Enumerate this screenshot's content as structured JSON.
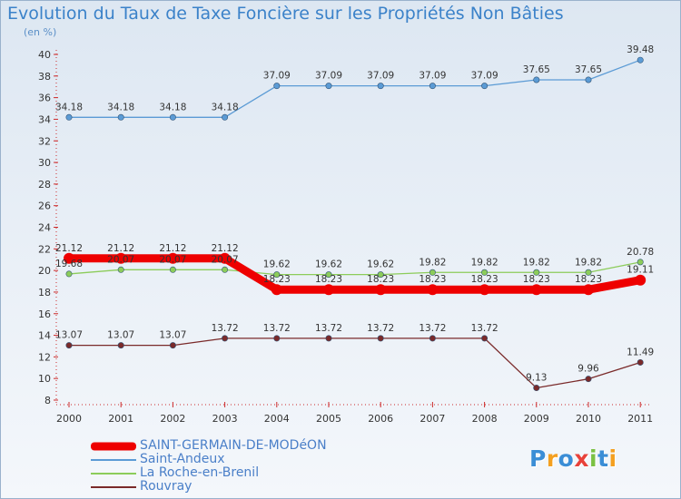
{
  "title": "Evolution du Taux de Taxe Foncière sur les Propriétés Non Bâties",
  "subtitle": "(en %)",
  "logo": {
    "text": "Proxiti",
    "letters": [
      "P",
      "r",
      "o",
      "x",
      "i",
      "t",
      "i"
    ],
    "colors": [
      "#3b8ed6",
      "#f4a020",
      "#3b8ed6",
      "#e8423a",
      "#7bc143",
      "#3b8ed6",
      "#f4a020"
    ]
  },
  "chart_data": {
    "type": "line",
    "title": "Evolution du Taux de Taxe Foncière sur les Propriétés Non Bâties",
    "ylabel": "(en %)",
    "xlabel": "",
    "ylim": [
      8,
      40
    ],
    "yticks": [
      "8",
      "10",
      "12",
      "14",
      "16",
      "18",
      "20",
      "22",
      "24",
      "26",
      "28",
      "30",
      "32",
      "34",
      "36",
      "38",
      "40"
    ],
    "categories": [
      "2000",
      "2001",
      "2002",
      "2003",
      "2004",
      "2005",
      "2006",
      "2007",
      "2008",
      "2009",
      "2010",
      "2011"
    ],
    "grid": false,
    "legend_position": "bottom-left",
    "series": [
      {
        "name": "SAINT-GERMAIN-DE-MODéON",
        "color": "#ee0000",
        "emphasis": true,
        "values": [
          21.12,
          21.12,
          21.12,
          21.12,
          18.23,
          18.23,
          18.23,
          18.23,
          18.23,
          18.23,
          18.23,
          19.11
        ],
        "labels": [
          "21.12",
          "21.12",
          "21.12",
          "21.12",
          "18.23",
          "18.23",
          "18.23",
          "18.23",
          "18.23",
          "18.23",
          "18.23",
          "19.11"
        ]
      },
      {
        "name": "Saint-Andeux",
        "color": "#5b9bd5",
        "emphasis": false,
        "values": [
          34.18,
          34.18,
          34.18,
          34.18,
          37.09,
          37.09,
          37.09,
          37.09,
          37.09,
          37.65,
          37.65,
          39.48
        ],
        "labels": [
          "34.18",
          "34.18",
          "34.18",
          "34.18",
          "37.09",
          "37.09",
          "37.09",
          "37.09",
          "37.09",
          "37.65",
          "37.65",
          "39.48"
        ]
      },
      {
        "name": "La Roche-en-Brenil",
        "color": "#8ccc5a",
        "emphasis": false,
        "values": [
          19.68,
          20.07,
          20.07,
          20.07,
          19.62,
          19.62,
          19.62,
          19.82,
          19.82,
          19.82,
          19.82,
          20.78
        ],
        "labels": [
          "19.68",
          "20.07",
          "20.07",
          "20.07",
          "19.62",
          "19.62",
          "19.62",
          "19.82",
          "19.82",
          "19.82",
          "19.82",
          "20.78"
        ]
      },
      {
        "name": "Rouvray",
        "color": "#7a2a2a",
        "emphasis": false,
        "values": [
          13.07,
          13.07,
          13.07,
          13.72,
          13.72,
          13.72,
          13.72,
          13.72,
          13.72,
          9.13,
          9.96,
          11.49
        ],
        "labels": [
          "13.07",
          "13.07",
          "13.07",
          "13.72",
          "13.72",
          "13.72",
          "13.72",
          "13.72",
          "13.72",
          "9.13",
          "9.96",
          "11.49"
        ]
      }
    ]
  }
}
